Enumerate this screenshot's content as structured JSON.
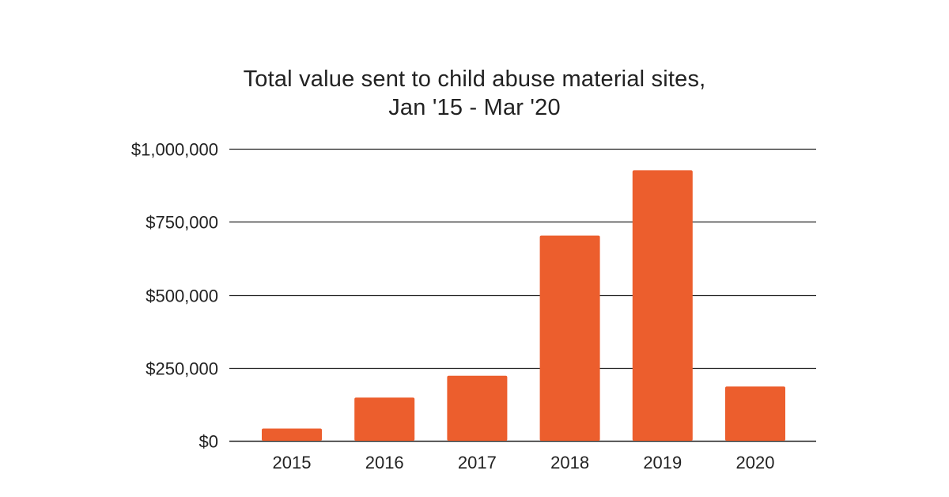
{
  "chart_data": {
    "type": "bar",
    "title_lines": [
      "Total value sent to child abuse material sites,",
      "Jan '15 - Mar '20"
    ],
    "xlabel": "",
    "ylabel": "",
    "categories": [
      "2015",
      "2016",
      "2017",
      "2018",
      "2019",
      "2020"
    ],
    "values": [
      42000,
      148000,
      223000,
      703000,
      926000,
      186000
    ],
    "ylim": [
      0,
      1000000
    ],
    "y_ticks": [
      0,
      250000,
      500000,
      750000,
      1000000
    ],
    "y_tick_labels": [
      "$0",
      "$250,000",
      "$500,000",
      "$750,000",
      "$1,000,000"
    ],
    "grid": true,
    "legend": "none",
    "colors": {
      "bar": "#ec5e2d",
      "grid": "#222222",
      "text": "#222222"
    }
  }
}
